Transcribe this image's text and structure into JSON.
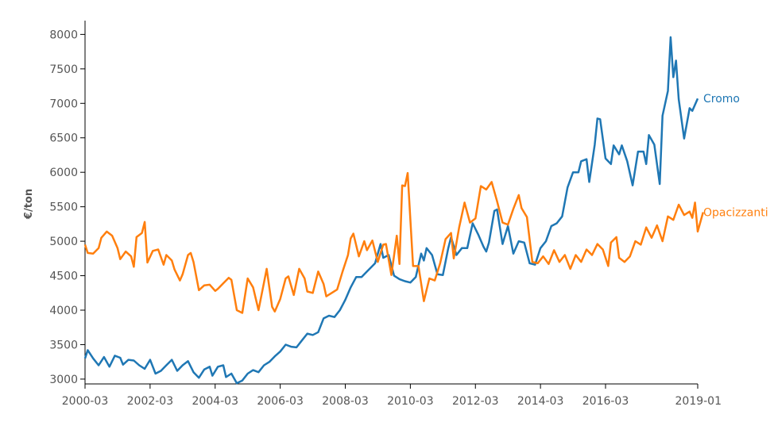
{
  "chart_data": {
    "type": "line",
    "title": "",
    "xlabel": "",
    "ylabel": "€/ton",
    "ylim": [
      2930,
      8200
    ],
    "x_range": [
      "2000-03",
      "2019-01"
    ],
    "grid": false,
    "x_tick_labels": [
      "2000-03",
      "2002-03",
      "2004-03",
      "2006-03",
      "2008-03",
      "2010-03",
      "2012-03",
      "2014-03",
      "2016-03",
      "2019-01"
    ],
    "y_ticks": [
      3000,
      3500,
      4000,
      4500,
      5000,
      5500,
      6000,
      6500,
      7000,
      7500,
      8000
    ],
    "y_tick_labels": [
      "3000",
      "3500",
      "4000",
      "4500",
      "5000",
      "5500",
      "6000",
      "6500",
      "7000",
      "7500",
      "8000"
    ],
    "series": [
      {
        "name": "Cromo",
        "color": "#1f77b4",
        "points": [
          [
            "2000-03",
            3300
          ],
          [
            "2000-04",
            3420
          ],
          [
            "2000-06",
            3300
          ],
          [
            "2000-08",
            3200
          ],
          [
            "2000-10",
            3320
          ],
          [
            "2000-12",
            3180
          ],
          [
            "2001-02",
            3340
          ],
          [
            "2001-04",
            3310
          ],
          [
            "2001-05",
            3210
          ],
          [
            "2001-07",
            3280
          ],
          [
            "2001-09",
            3270
          ],
          [
            "2001-11",
            3200
          ],
          [
            "2002-01",
            3150
          ],
          [
            "2002-03",
            3280
          ],
          [
            "2002-05",
            3080
          ],
          [
            "2002-07",
            3120
          ],
          [
            "2002-09",
            3200
          ],
          [
            "2002-11",
            3280
          ],
          [
            "2003-01",
            3120
          ],
          [
            "2003-03",
            3200
          ],
          [
            "2003-05",
            3260
          ],
          [
            "2003-07",
            3100
          ],
          [
            "2003-09",
            3020
          ],
          [
            "2003-11",
            3140
          ],
          [
            "2004-01",
            3180
          ],
          [
            "2004-02",
            3050
          ],
          [
            "2004-04",
            3180
          ],
          [
            "2004-06",
            3200
          ],
          [
            "2004-07",
            3030
          ],
          [
            "2004-09",
            3080
          ],
          [
            "2004-11",
            2940
          ],
          [
            "2005-01",
            2980
          ],
          [
            "2005-03",
            3080
          ],
          [
            "2005-05",
            3130
          ],
          [
            "2005-07",
            3100
          ],
          [
            "2005-09",
            3200
          ],
          [
            "2005-11",
            3250
          ],
          [
            "2006-01",
            3330
          ],
          [
            "2006-03",
            3400
          ],
          [
            "2006-05",
            3500
          ],
          [
            "2006-07",
            3470
          ],
          [
            "2006-09",
            3460
          ],
          [
            "2006-11",
            3560
          ],
          [
            "2007-01",
            3660
          ],
          [
            "2007-03",
            3640
          ],
          [
            "2007-05",
            3680
          ],
          [
            "2007-07",
            3880
          ],
          [
            "2007-09",
            3920
          ],
          [
            "2007-11",
            3900
          ],
          [
            "2008-01",
            4000
          ],
          [
            "2008-03",
            4150
          ],
          [
            "2008-05",
            4330
          ],
          [
            "2008-07",
            4480
          ],
          [
            "2008-09",
            4480
          ],
          [
            "2008-11",
            4560
          ],
          [
            "2009-01",
            4640
          ],
          [
            "2009-02",
            4680
          ],
          [
            "2009-04",
            4960
          ],
          [
            "2009-05",
            4760
          ],
          [
            "2009-07",
            4800
          ],
          [
            "2009-09",
            4500
          ],
          [
            "2009-11",
            4450
          ],
          [
            "2010-01",
            4420
          ],
          [
            "2010-03",
            4400
          ],
          [
            "2010-05",
            4480
          ],
          [
            "2010-07",
            4820
          ],
          [
            "2010-08",
            4720
          ],
          [
            "2010-09",
            4900
          ],
          [
            "2010-11",
            4800
          ],
          [
            "2011-01",
            4520
          ],
          [
            "2011-03",
            4510
          ],
          [
            "2011-05",
            4900
          ],
          [
            "2011-06",
            5060
          ],
          [
            "2011-08",
            4800
          ],
          [
            "2011-10",
            4900
          ],
          [
            "2011-12",
            4900
          ],
          [
            "2012-02",
            5260
          ],
          [
            "2012-04",
            5100
          ],
          [
            "2012-06",
            4920
          ],
          [
            "2012-07",
            4850
          ],
          [
            "2012-08",
            4980
          ],
          [
            "2012-10",
            5440
          ],
          [
            "2012-11",
            5460
          ],
          [
            "2013-01",
            4960
          ],
          [
            "2013-03",
            5220
          ],
          [
            "2013-05",
            4820
          ],
          [
            "2013-07",
            5000
          ],
          [
            "2013-09",
            4980
          ],
          [
            "2013-11",
            4680
          ],
          [
            "2014-01",
            4660
          ],
          [
            "2014-03",
            4900
          ],
          [
            "2014-05",
            5000
          ],
          [
            "2014-07",
            5220
          ],
          [
            "2014-09",
            5260
          ],
          [
            "2014-11",
            5360
          ],
          [
            "2015-01",
            5780
          ],
          [
            "2015-03",
            6000
          ],
          [
            "2015-05",
            6000
          ],
          [
            "2015-06",
            6160
          ],
          [
            "2015-08",
            6190
          ],
          [
            "2015-09",
            5860
          ],
          [
            "2015-11",
            6400
          ],
          [
            "2015-12",
            6780
          ],
          [
            "2016-01",
            6770
          ],
          [
            "2016-03",
            6200
          ],
          [
            "2016-05",
            6120
          ],
          [
            "2016-06",
            6390
          ],
          [
            "2016-08",
            6260
          ],
          [
            "2016-09",
            6390
          ],
          [
            "2016-11",
            6160
          ],
          [
            "2017-01",
            5810
          ],
          [
            "2017-03",
            6300
          ],
          [
            "2017-05",
            6300
          ],
          [
            "2017-06",
            6120
          ],
          [
            "2017-07",
            6540
          ],
          [
            "2017-09",
            6400
          ],
          [
            "2017-11",
            5830
          ],
          [
            "2017-12",
            6820
          ],
          [
            "2018-02",
            7180
          ],
          [
            "2018-03",
            7960
          ],
          [
            "2018-04",
            7380
          ],
          [
            "2018-05",
            7620
          ],
          [
            "2018-06",
            7060
          ],
          [
            "2018-08",
            6490
          ],
          [
            "2018-10",
            6930
          ],
          [
            "2018-11",
            6890
          ],
          [
            "2019-01",
            7070
          ]
        ]
      },
      {
        "name": "Opacizzanti",
        "color": "#ff7f0e",
        "points": [
          [
            "2000-03",
            4950
          ],
          [
            "2000-04",
            4830
          ],
          [
            "2000-06",
            4820
          ],
          [
            "2000-08",
            4900
          ],
          [
            "2000-09",
            5050
          ],
          [
            "2000-11",
            5140
          ],
          [
            "2001-01",
            5080
          ],
          [
            "2001-03",
            4900
          ],
          [
            "2001-04",
            4740
          ],
          [
            "2001-06",
            4850
          ],
          [
            "2001-08",
            4780
          ],
          [
            "2001-09",
            4630
          ],
          [
            "2001-10",
            5060
          ],
          [
            "2001-12",
            5120
          ],
          [
            "2002-01",
            5280
          ],
          [
            "2002-02",
            4690
          ],
          [
            "2002-04",
            4860
          ],
          [
            "2002-06",
            4880
          ],
          [
            "2002-08",
            4660
          ],
          [
            "2002-09",
            4800
          ],
          [
            "2002-11",
            4720
          ],
          [
            "2002-12",
            4590
          ],
          [
            "2003-02",
            4430
          ],
          [
            "2003-03",
            4520
          ],
          [
            "2003-05",
            4800
          ],
          [
            "2003-06",
            4830
          ],
          [
            "2003-07",
            4700
          ],
          [
            "2003-09",
            4290
          ],
          [
            "2003-11",
            4360
          ],
          [
            "2004-01",
            4370
          ],
          [
            "2004-03",
            4280
          ],
          [
            "2004-04",
            4310
          ],
          [
            "2004-06",
            4390
          ],
          [
            "2004-08",
            4470
          ],
          [
            "2004-09",
            4440
          ],
          [
            "2004-11",
            4000
          ],
          [
            "2005-01",
            3960
          ],
          [
            "2005-03",
            4460
          ],
          [
            "2005-05",
            4330
          ],
          [
            "2005-07",
            4000
          ],
          [
            "2005-09",
            4400
          ],
          [
            "2005-10",
            4600
          ],
          [
            "2005-12",
            4050
          ],
          [
            "2006-01",
            3980
          ],
          [
            "2006-03",
            4160
          ],
          [
            "2006-05",
            4460
          ],
          [
            "2006-06",
            4490
          ],
          [
            "2006-08",
            4220
          ],
          [
            "2006-10",
            4600
          ],
          [
            "2006-12",
            4460
          ],
          [
            "2007-01",
            4270
          ],
          [
            "2007-03",
            4250
          ],
          [
            "2007-05",
            4560
          ],
          [
            "2007-07",
            4380
          ],
          [
            "2007-08",
            4200
          ],
          [
            "2007-10",
            4250
          ],
          [
            "2007-12",
            4300
          ],
          [
            "2008-02",
            4560
          ],
          [
            "2008-04",
            4800
          ],
          [
            "2008-05",
            5040
          ],
          [
            "2008-06",
            5110
          ],
          [
            "2008-08",
            4780
          ],
          [
            "2008-10",
            5000
          ],
          [
            "2008-11",
            4870
          ],
          [
            "2009-01",
            5010
          ],
          [
            "2009-03",
            4700
          ],
          [
            "2009-05",
            4950
          ],
          [
            "2009-06",
            4960
          ],
          [
            "2009-08",
            4510
          ],
          [
            "2009-10",
            5080
          ],
          [
            "2009-11",
            4670
          ],
          [
            "2009-12",
            5810
          ],
          [
            "2010-01",
            5800
          ],
          [
            "2010-02",
            5990
          ],
          [
            "2010-04",
            4640
          ],
          [
            "2010-06",
            4640
          ],
          [
            "2010-08",
            4130
          ],
          [
            "2010-10",
            4460
          ],
          [
            "2010-12",
            4430
          ],
          [
            "2011-02",
            4680
          ],
          [
            "2011-04",
            5030
          ],
          [
            "2011-06",
            5120
          ],
          [
            "2011-07",
            4750
          ],
          [
            "2011-09",
            5200
          ],
          [
            "2011-11",
            5560
          ],
          [
            "2012-01",
            5270
          ],
          [
            "2012-03",
            5330
          ],
          [
            "2012-05",
            5800
          ],
          [
            "2012-07",
            5750
          ],
          [
            "2012-09",
            5860
          ],
          [
            "2012-11",
            5580
          ],
          [
            "2013-01",
            5270
          ],
          [
            "2013-03",
            5240
          ],
          [
            "2013-05",
            5470
          ],
          [
            "2013-07",
            5670
          ],
          [
            "2013-08",
            5480
          ],
          [
            "2013-10",
            5350
          ],
          [
            "2013-12",
            4700
          ],
          [
            "2014-02",
            4680
          ],
          [
            "2014-04",
            4780
          ],
          [
            "2014-06",
            4670
          ],
          [
            "2014-08",
            4870
          ],
          [
            "2014-10",
            4700
          ],
          [
            "2014-12",
            4800
          ],
          [
            "2015-02",
            4600
          ],
          [
            "2015-04",
            4800
          ],
          [
            "2015-06",
            4700
          ],
          [
            "2015-08",
            4880
          ],
          [
            "2015-10",
            4800
          ],
          [
            "2015-12",
            4960
          ],
          [
            "2016-02",
            4880
          ],
          [
            "2016-04",
            4640
          ],
          [
            "2016-05",
            4980
          ],
          [
            "2016-07",
            5060
          ],
          [
            "2016-08",
            4760
          ],
          [
            "2016-10",
            4700
          ],
          [
            "2016-12",
            4780
          ],
          [
            "2017-02",
            5000
          ],
          [
            "2017-04",
            4950
          ],
          [
            "2017-06",
            5200
          ],
          [
            "2017-08",
            5050
          ],
          [
            "2017-10",
            5230
          ],
          [
            "2017-12",
            5000
          ],
          [
            "2018-02",
            5360
          ],
          [
            "2018-04",
            5310
          ],
          [
            "2018-06",
            5530
          ],
          [
            "2018-08",
            5380
          ],
          [
            "2018-10",
            5430
          ],
          [
            "2018-11",
            5340
          ],
          [
            "2018-12",
            5560
          ],
          [
            "2019-01",
            5140
          ],
          [
            "2019-03",
            5420
          ]
        ]
      }
    ]
  }
}
